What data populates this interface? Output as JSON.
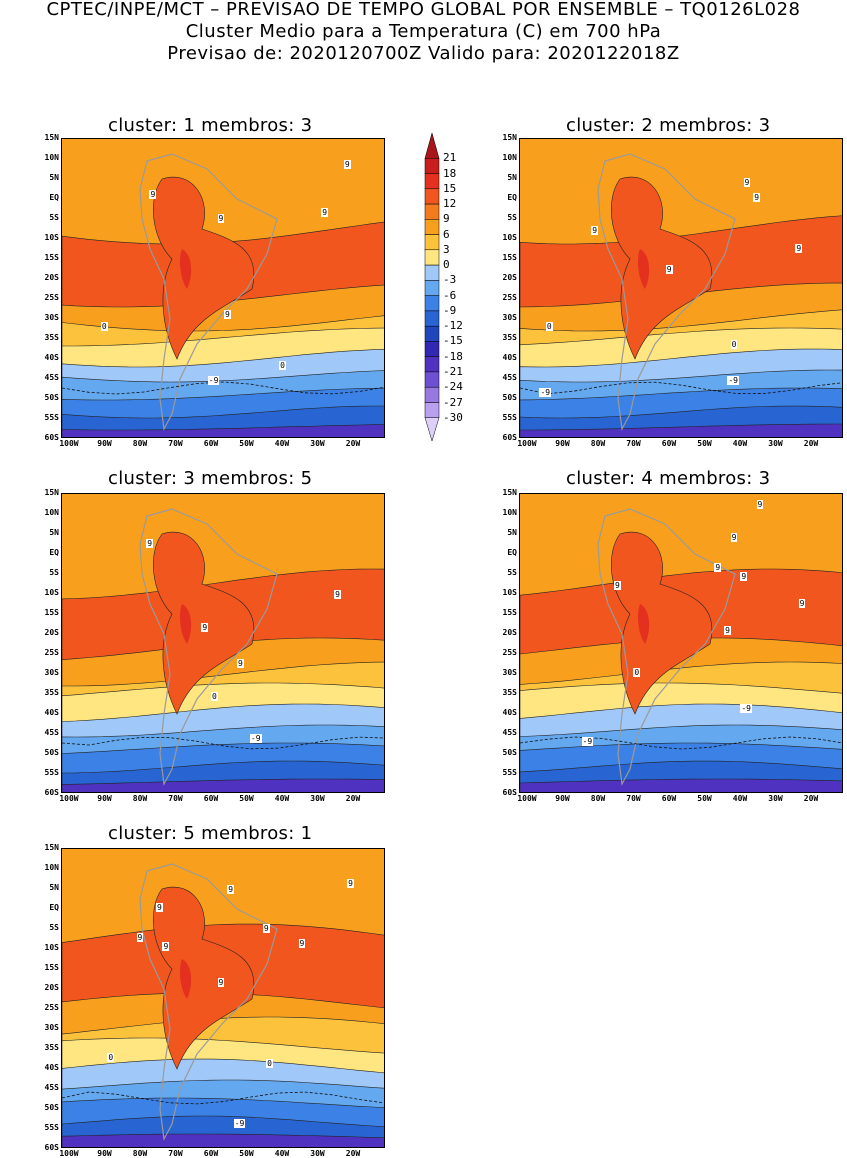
{
  "header": {
    "line1": "CPTEC/INPE/MCT – PREVISAO DE TEMPO GLOBAL POR ENSEMBLE – TQ0126L028",
    "line2": "Cluster Medio para a Temperatura (C) em 700 hPa",
    "line3": "Previsao de: 2020120700Z   Valido para: 2020122018Z"
  },
  "lat_labels": [
    "15N",
    "10N",
    "5N",
    "EQ",
    "5S",
    "10S",
    "15S",
    "20S",
    "25S",
    "30S",
    "35S",
    "40S",
    "45S",
    "50S",
    "55S",
    "60S"
  ],
  "lon_labels": [
    "100W",
    "90W",
    "80W",
    "70W",
    "60W",
    "50W",
    "40W",
    "30W",
    "20W"
  ],
  "colorbar": {
    "levels": [
      "21",
      "18",
      "15",
      "12",
      "9",
      "6",
      "3",
      "0",
      "-3",
      "-6",
      "-9",
      "-12",
      "-15",
      "-18",
      "-21",
      "-24",
      "-27",
      "-30"
    ],
    "colors": [
      "#a8161a",
      "#c81e1e",
      "#e4301e",
      "#f0561e",
      "#f47a1e",
      "#f8a01e",
      "#fcc23c",
      "#ffe680",
      "#a0c8f8",
      "#64a8f0",
      "#3c82e6",
      "#2864d2",
      "#2046be",
      "#3228b4",
      "#5032c0",
      "#6e50d2",
      "#9678e0",
      "#b9a0f0",
      "#dcd0fa"
    ]
  },
  "panels": [
    {
      "title": "cluster: 1   membros: 3",
      "labels": [
        {
          "t": "9"
        },
        {
          "t": "9"
        },
        {
          "t": "9"
        },
        {
          "t": "9"
        },
        {
          "t": "9"
        },
        {
          "t": "0"
        },
        {
          "t": "0"
        },
        {
          "t": "-9"
        }
      ]
    },
    {
      "title": "cluster: 2   membros: 3",
      "labels": [
        {
          "t": "9"
        },
        {
          "t": "9"
        },
        {
          "t": "9"
        },
        {
          "t": "9"
        },
        {
          "t": "9"
        },
        {
          "t": "0"
        },
        {
          "t": "0"
        },
        {
          "t": "-9"
        },
        {
          "t": "-9"
        }
      ]
    },
    {
      "title": "cluster: 3   membros: 5",
      "labels": [
        {
          "t": "9"
        },
        {
          "t": "9"
        },
        {
          "t": "9"
        },
        {
          "t": "9"
        },
        {
          "t": "0"
        },
        {
          "t": "-9"
        }
      ]
    },
    {
      "title": "cluster: 4   membros: 3",
      "labels": [
        {
          "t": "9"
        },
        {
          "t": "9"
        },
        {
          "t": "9"
        },
        {
          "t": "9"
        },
        {
          "t": "9"
        },
        {
          "t": "9"
        },
        {
          "t": "9"
        },
        {
          "t": "0"
        },
        {
          "t": "-9"
        },
        {
          "t": "-9"
        }
      ]
    },
    {
      "title": "cluster: 5   membros: 1",
      "labels": [
        {
          "t": "9"
        },
        {
          "t": "9"
        },
        {
          "t": "9"
        },
        {
          "t": "9"
        },
        {
          "t": "9"
        },
        {
          "t": "9"
        },
        {
          "t": "9"
        },
        {
          "t": "9"
        },
        {
          "t": "0"
        },
        {
          "t": "0"
        },
        {
          "t": "-9"
        }
      ]
    }
  ]
}
